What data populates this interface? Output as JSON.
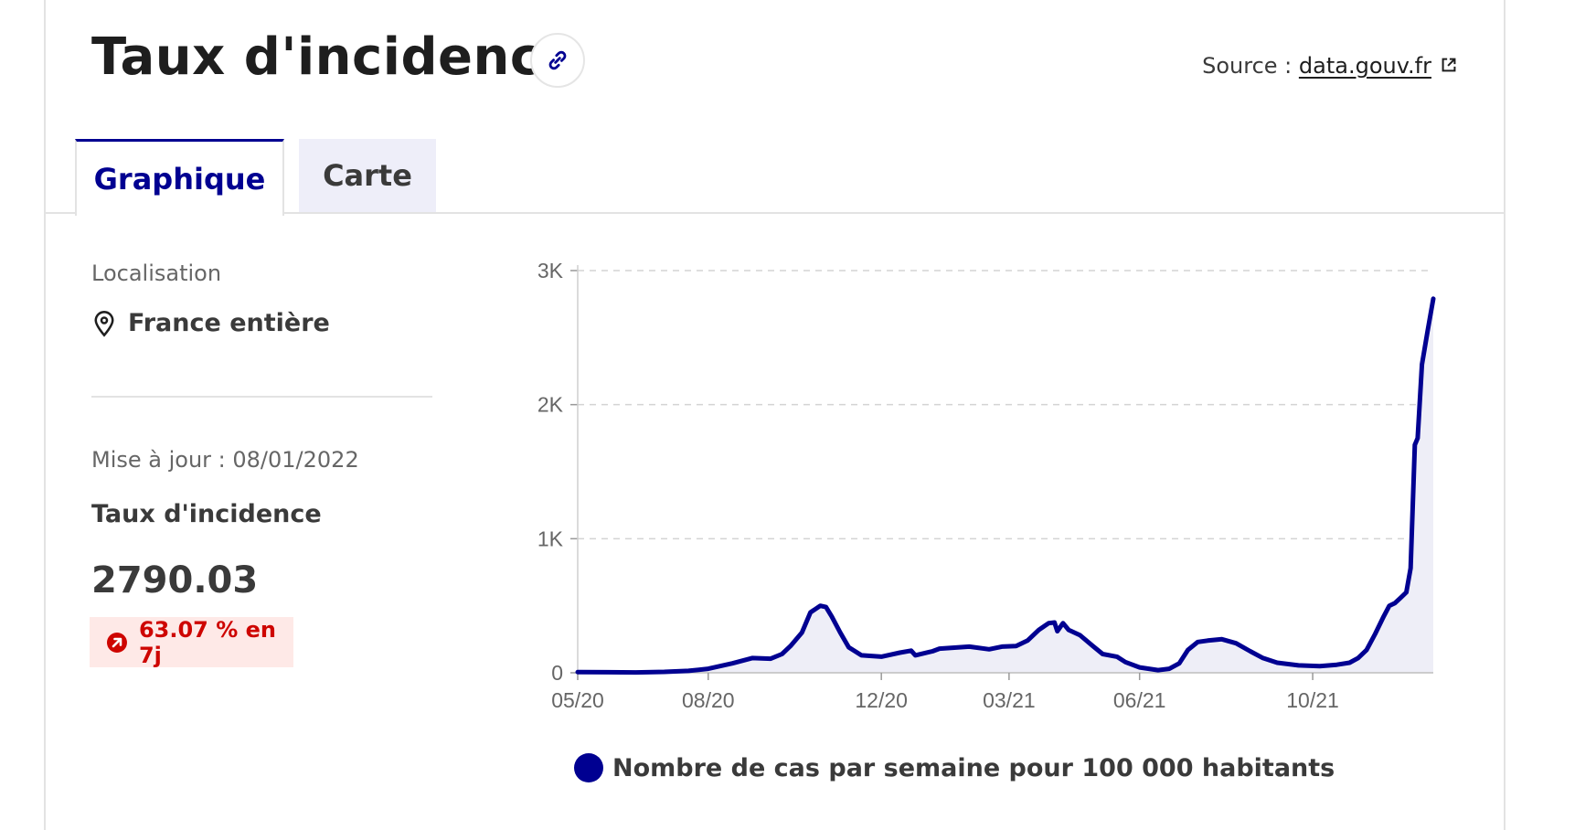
{
  "header": {
    "title": "Taux d'incidence",
    "source_prefix": "Source :",
    "source_link": "data.gouv.fr"
  },
  "tabs": [
    {
      "label": "Graphique",
      "active": true
    },
    {
      "label": "Carte",
      "active": false
    }
  ],
  "sidebar": {
    "location_label": "Localisation",
    "location_value": "France entière",
    "update_text": "Mise à jour : 08/01/2022",
    "metric_label": "Taux d'incidence",
    "metric_value": "2790.03",
    "change_text": "63.07 % en 7j"
  },
  "icons": {
    "link": "link-icon",
    "external": "external-link-icon",
    "location": "map-pin-icon",
    "trend": "arrow-up-right-circle-icon"
  },
  "colors": {
    "accent": "#000091",
    "badge_bg": "#fee9e7",
    "badge_text": "#ce0500",
    "area_fill": "#eeeef7"
  },
  "chart_data": {
    "type": "area",
    "legend": "Nombre de cas par semaine pour 100 000 habitants",
    "ylim": [
      0,
      3000
    ],
    "y_ticks": [
      {
        "value": 0,
        "label": "0"
      },
      {
        "value": 1000,
        "label": "1K"
      },
      {
        "value": 2000,
        "label": "2K"
      },
      {
        "value": 3000,
        "label": "3K"
      }
    ],
    "x_range": [
      "2020-05-15",
      "2022-01-08"
    ],
    "x_ticks": [
      {
        "date": "2020-05-15",
        "label": "05/20"
      },
      {
        "date": "2020-08-15",
        "label": "08/20"
      },
      {
        "date": "2020-12-15",
        "label": "12/20"
      },
      {
        "date": "2021-03-15",
        "label": "03/21"
      },
      {
        "date": "2021-06-15",
        "label": "06/21"
      },
      {
        "date": "2021-10-15",
        "label": "10/21"
      }
    ],
    "grid": "horizontal dashed",
    "series": [
      {
        "name": "Nombre de cas par semaine pour 100 000 habitants",
        "points": [
          [
            "2020-05-15",
            5
          ],
          [
            "2020-06-05",
            4
          ],
          [
            "2020-06-25",
            3
          ],
          [
            "2020-07-15",
            7
          ],
          [
            "2020-08-01",
            14
          ],
          [
            "2020-08-15",
            30
          ],
          [
            "2020-09-01",
            70
          ],
          [
            "2020-09-15",
            110
          ],
          [
            "2020-09-28",
            105
          ],
          [
            "2020-10-06",
            140
          ],
          [
            "2020-10-12",
            200
          ],
          [
            "2020-10-20",
            300
          ],
          [
            "2020-10-26",
            450
          ],
          [
            "2020-11-02",
            500
          ],
          [
            "2020-11-06",
            490
          ],
          [
            "2020-11-10",
            420
          ],
          [
            "2020-11-16",
            300
          ],
          [
            "2020-11-22",
            190
          ],
          [
            "2020-12-01",
            130
          ],
          [
            "2020-12-15",
            120
          ],
          [
            "2020-12-28",
            150
          ],
          [
            "2021-01-05",
            165
          ],
          [
            "2021-01-08",
            130
          ],
          [
            "2021-01-20",
            160
          ],
          [
            "2021-01-25",
            180
          ],
          [
            "2021-02-01",
            185
          ],
          [
            "2021-02-15",
            195
          ],
          [
            "2021-03-01",
            175
          ],
          [
            "2021-03-10",
            195
          ],
          [
            "2021-03-20",
            200
          ],
          [
            "2021-03-28",
            240
          ],
          [
            "2021-04-05",
            320
          ],
          [
            "2021-04-12",
            370
          ],
          [
            "2021-04-16",
            375
          ],
          [
            "2021-04-18",
            310
          ],
          [
            "2021-04-22",
            370
          ],
          [
            "2021-04-26",
            320
          ],
          [
            "2021-05-04",
            280
          ],
          [
            "2021-05-13",
            200
          ],
          [
            "2021-05-20",
            140
          ],
          [
            "2021-05-30",
            120
          ],
          [
            "2021-06-05",
            80
          ],
          [
            "2021-06-15",
            40
          ],
          [
            "2021-06-28",
            20
          ],
          [
            "2021-07-06",
            30
          ],
          [
            "2021-07-13",
            70
          ],
          [
            "2021-07-19",
            170
          ],
          [
            "2021-07-26",
            230
          ],
          [
            "2021-08-02",
            240
          ],
          [
            "2021-08-12",
            250
          ],
          [
            "2021-08-22",
            220
          ],
          [
            "2021-09-01",
            160
          ],
          [
            "2021-09-10",
            110
          ],
          [
            "2021-09-20",
            75
          ],
          [
            "2021-10-05",
            55
          ],
          [
            "2021-10-20",
            50
          ],
          [
            "2021-11-01",
            60
          ],
          [
            "2021-11-10",
            75
          ],
          [
            "2021-11-16",
            110
          ],
          [
            "2021-11-22",
            170
          ],
          [
            "2021-11-28",
            290
          ],
          [
            "2021-12-04",
            420
          ],
          [
            "2021-12-08",
            500
          ],
          [
            "2021-12-12",
            520
          ],
          [
            "2021-12-16",
            560
          ],
          [
            "2021-12-20",
            600
          ],
          [
            "2021-12-23",
            780
          ],
          [
            "2021-12-26",
            1700
          ],
          [
            "2021-12-28",
            1750
          ],
          [
            "2021-12-31",
            2300
          ],
          [
            "2022-01-04",
            2550
          ],
          [
            "2022-01-08",
            2790
          ]
        ]
      }
    ]
  }
}
